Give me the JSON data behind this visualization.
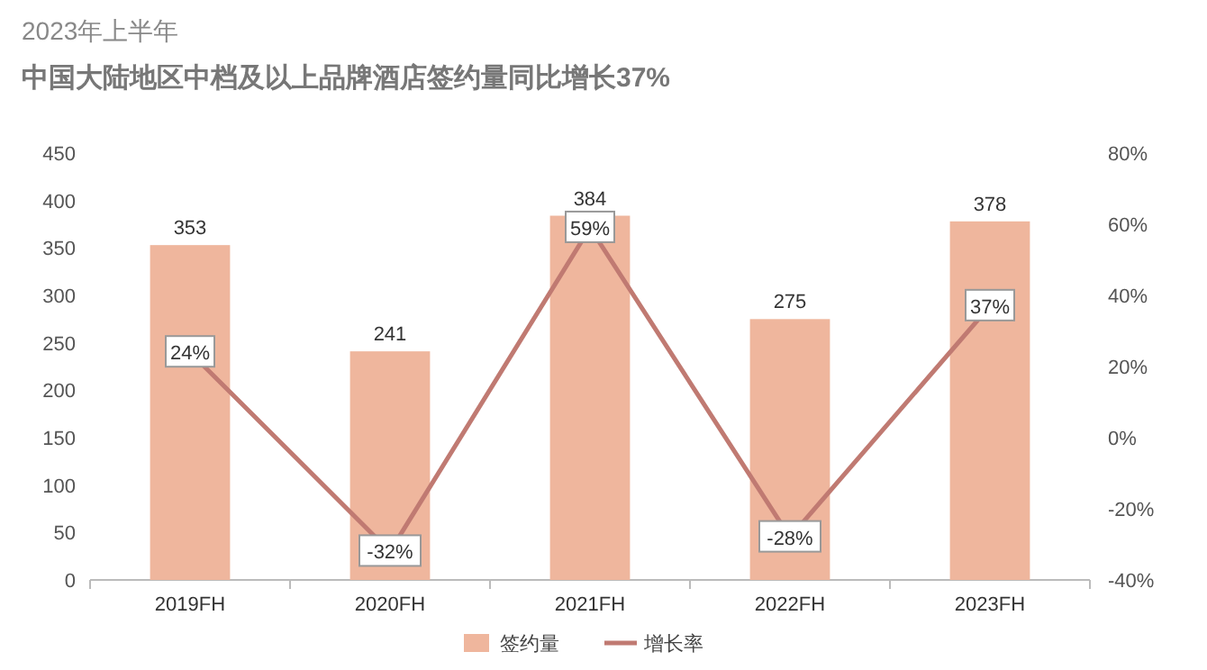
{
  "chart_data": {
    "type": "bar",
    "title": "2023年上半年",
    "subtitle": "中国大陆地区中档及以上品牌酒店签约量同比增长37%",
    "categories": [
      "2019FH",
      "2020FH",
      "2021FH",
      "2022FH",
      "2023FH"
    ],
    "series": [
      {
        "name": "签约量",
        "color": "#efb69d",
        "values": [
          353,
          241,
          384,
          275,
          378
        ]
      },
      {
        "name": "增长率",
        "type": "line",
        "axis": "y2",
        "marker": "square",
        "color": "#c07a72",
        "values": [
          24,
          -32,
          59,
          -28,
          37
        ],
        "value_labels": [
          "24%",
          "-32%",
          "59%",
          "-28%",
          "37%"
        ]
      }
    ],
    "data_labels": true,
    "ylim": [
      0,
      450
    ],
    "yticks": [
      0,
      50,
      100,
      150,
      200,
      250,
      300,
      350,
      400,
      450
    ],
    "y2lim": [
      -40,
      80
    ],
    "y2ticks": [
      {
        "value": -40,
        "label": "-40%"
      },
      {
        "value": -20,
        "label": "-20%"
      },
      {
        "value": 0,
        "label": "0%"
      },
      {
        "value": 20,
        "label": "20%"
      },
      {
        "value": 40,
        "label": "40%"
      },
      {
        "value": 60,
        "label": "60%"
      },
      {
        "value": 80,
        "label": "80%"
      }
    ],
    "grid": false,
    "legend": "bottom",
    "line_style": "solid"
  }
}
